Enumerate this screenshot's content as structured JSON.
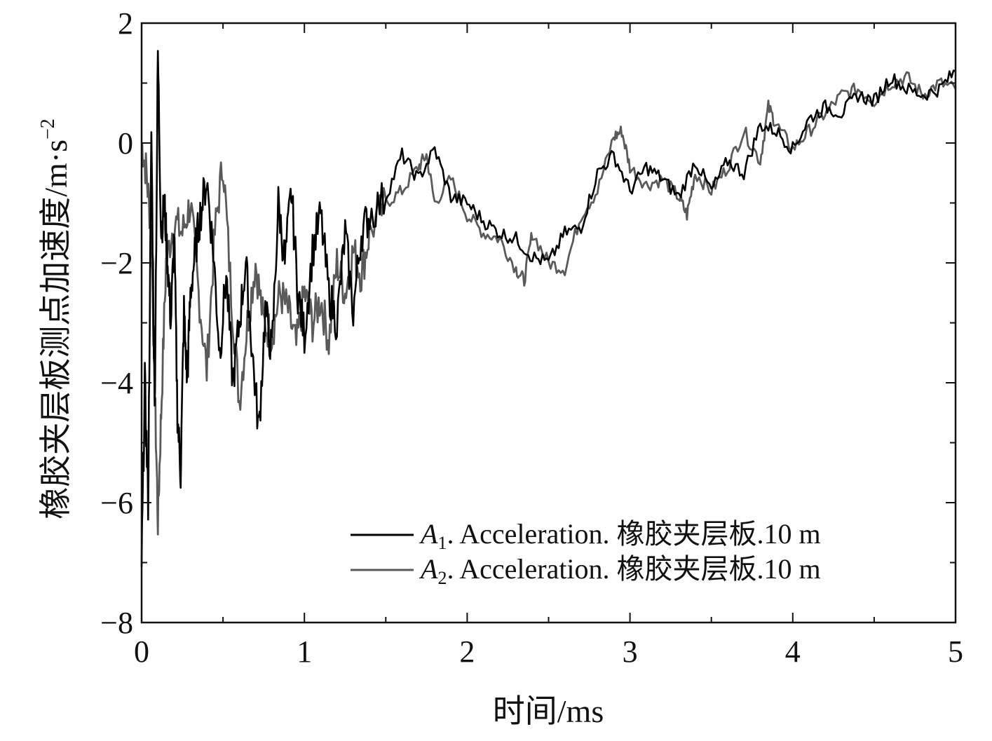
{
  "chart_data": {
    "type": "line",
    "title": "",
    "xlabel": "时间/ms",
    "ylabel": "橡胶夹层板测点加速度/m·s",
    "ylabel_sup": "−2",
    "xlim": [
      0,
      5
    ],
    "ylim": [
      -8,
      2
    ],
    "x_ticks": [
      0,
      1,
      2,
      3,
      4,
      5
    ],
    "x_tick_labels": [
      "0",
      "1",
      "2",
      "3",
      "4",
      "5"
    ],
    "y_ticks": [
      -8,
      -6,
      -4,
      -2,
      0,
      2
    ],
    "y_tick_labels": [
      "−8",
      "−6",
      "−4",
      "−2",
      "0",
      "2"
    ],
    "grid": false,
    "legend_position": "bottom-right",
    "series": [
      {
        "name": "A1. Acceleration. 橡胶夹层板.10 m",
        "name_parts": {
          "sym": "A",
          "sub": "1",
          "rest": ". Acceleration. 橡胶夹层板.10 m"
        },
        "color": "#000000",
        "x": [
          0,
          0.02,
          0.04,
          0.06,
          0.08,
          0.1,
          0.12,
          0.14,
          0.16,
          0.18,
          0.2,
          0.22,
          0.24,
          0.26,
          0.28,
          0.3,
          0.33,
          0.36,
          0.4,
          0.44,
          0.48,
          0.52,
          0.56,
          0.6,
          0.64,
          0.68,
          0.72,
          0.76,
          0.8,
          0.84,
          0.88,
          0.92,
          0.96,
          1.0,
          1.05,
          1.1,
          1.15,
          1.2,
          1.25,
          1.3,
          1.35,
          1.4,
          1.5,
          1.6,
          1.7,
          1.8,
          1.9,
          2.0,
          2.1,
          2.2,
          2.3,
          2.4,
          2.5,
          2.6,
          2.7,
          2.8,
          2.9,
          3.0,
          3.1,
          3.2,
          3.3,
          3.4,
          3.5,
          3.6,
          3.7,
          3.8,
          3.9,
          4.0,
          4.1,
          4.2,
          4.3,
          4.4,
          4.5,
          4.6,
          4.7,
          4.8,
          4.9,
          5.0
        ],
        "y": [
          -7.0,
          -4.0,
          -6.0,
          0.2,
          -4.5,
          1.5,
          -1.5,
          -1.0,
          -2.0,
          -3.0,
          -1.5,
          -4.5,
          -5.5,
          -2.8,
          -4.0,
          -2.5,
          -1.8,
          -1.2,
          -0.6,
          -1.8,
          -3.5,
          -2.2,
          -4.0,
          -3.0,
          -2.0,
          -3.5,
          -4.8,
          -2.8,
          -3.5,
          -1.0,
          -2.0,
          -0.8,
          -2.5,
          -3.2,
          -1.8,
          -1.2,
          -2.5,
          -3.0,
          -1.5,
          -2.8,
          -1.5,
          -1.2,
          -0.9,
          -0.2,
          -0.6,
          -0.1,
          -0.9,
          -1.0,
          -1.3,
          -1.5,
          -1.6,
          -1.9,
          -2.0,
          -1.5,
          -1.4,
          -0.5,
          -0.2,
          -0.8,
          -0.4,
          -0.6,
          -0.9,
          -0.3,
          -0.8,
          -0.3,
          -0.5,
          0.3,
          0.2,
          -0.1,
          0.4,
          0.6,
          0.5,
          0.8,
          0.7,
          1.1,
          0.9,
          0.8,
          0.9,
          1.2
        ]
      },
      {
        "name": "A2. Acceleration. 橡胶夹层板.10 m",
        "name_parts": {
          "sym": "A",
          "sub": "2",
          "rest": ". Acceleration. 橡胶夹层板.10 m"
        },
        "color": "#5a5a5a",
        "x": [
          0,
          0.03,
          0.06,
          0.08,
          0.1,
          0.12,
          0.15,
          0.2,
          0.25,
          0.3,
          0.35,
          0.4,
          0.45,
          0.5,
          0.55,
          0.6,
          0.65,
          0.7,
          0.75,
          0.8,
          0.85,
          0.9,
          0.95,
          1.0,
          1.05,
          1.1,
          1.15,
          1.2,
          1.25,
          1.3,
          1.35,
          1.4,
          1.5,
          1.6,
          1.7,
          1.75,
          1.8,
          1.9,
          2.0,
          2.1,
          2.2,
          2.3,
          2.35,
          2.4,
          2.5,
          2.6,
          2.7,
          2.8,
          2.9,
          2.95,
          3.0,
          3.1,
          3.2,
          3.3,
          3.35,
          3.4,
          3.5,
          3.6,
          3.7,
          3.8,
          3.85,
          3.9,
          4.0,
          4.1,
          4.2,
          4.3,
          4.4,
          4.5,
          4.6,
          4.7,
          4.8,
          4.9,
          5.0
        ],
        "y": [
          0.0,
          -0.5,
          -1.5,
          -4.0,
          -6.3,
          -4.5,
          -2.0,
          -1.3,
          -1.5,
          -1.0,
          -2.5,
          -3.8,
          -1.5,
          -0.3,
          -2.5,
          -4.3,
          -3.0,
          -2.0,
          -3.0,
          -3.2,
          -2.5,
          -2.8,
          -3.4,
          -2.5,
          -3.0,
          -2.6,
          -3.3,
          -2.0,
          -2.5,
          -1.8,
          -2.2,
          -1.5,
          -1.0,
          -0.8,
          -0.4,
          -0.2,
          -1.0,
          -0.6,
          -1.2,
          -1.5,
          -1.6,
          -2.1,
          -2.3,
          -1.5,
          -2.0,
          -2.1,
          -1.2,
          -0.8,
          0.1,
          0.2,
          -0.4,
          -0.7,
          -0.6,
          -0.9,
          -1.2,
          -0.5,
          -0.8,
          -0.4,
          0.2,
          -0.3,
          0.6,
          0.3,
          -0.1,
          0.2,
          0.5,
          0.8,
          0.9,
          0.7,
          1.0,
          1.1,
          0.8,
          1.0,
          0.9
        ]
      }
    ]
  }
}
